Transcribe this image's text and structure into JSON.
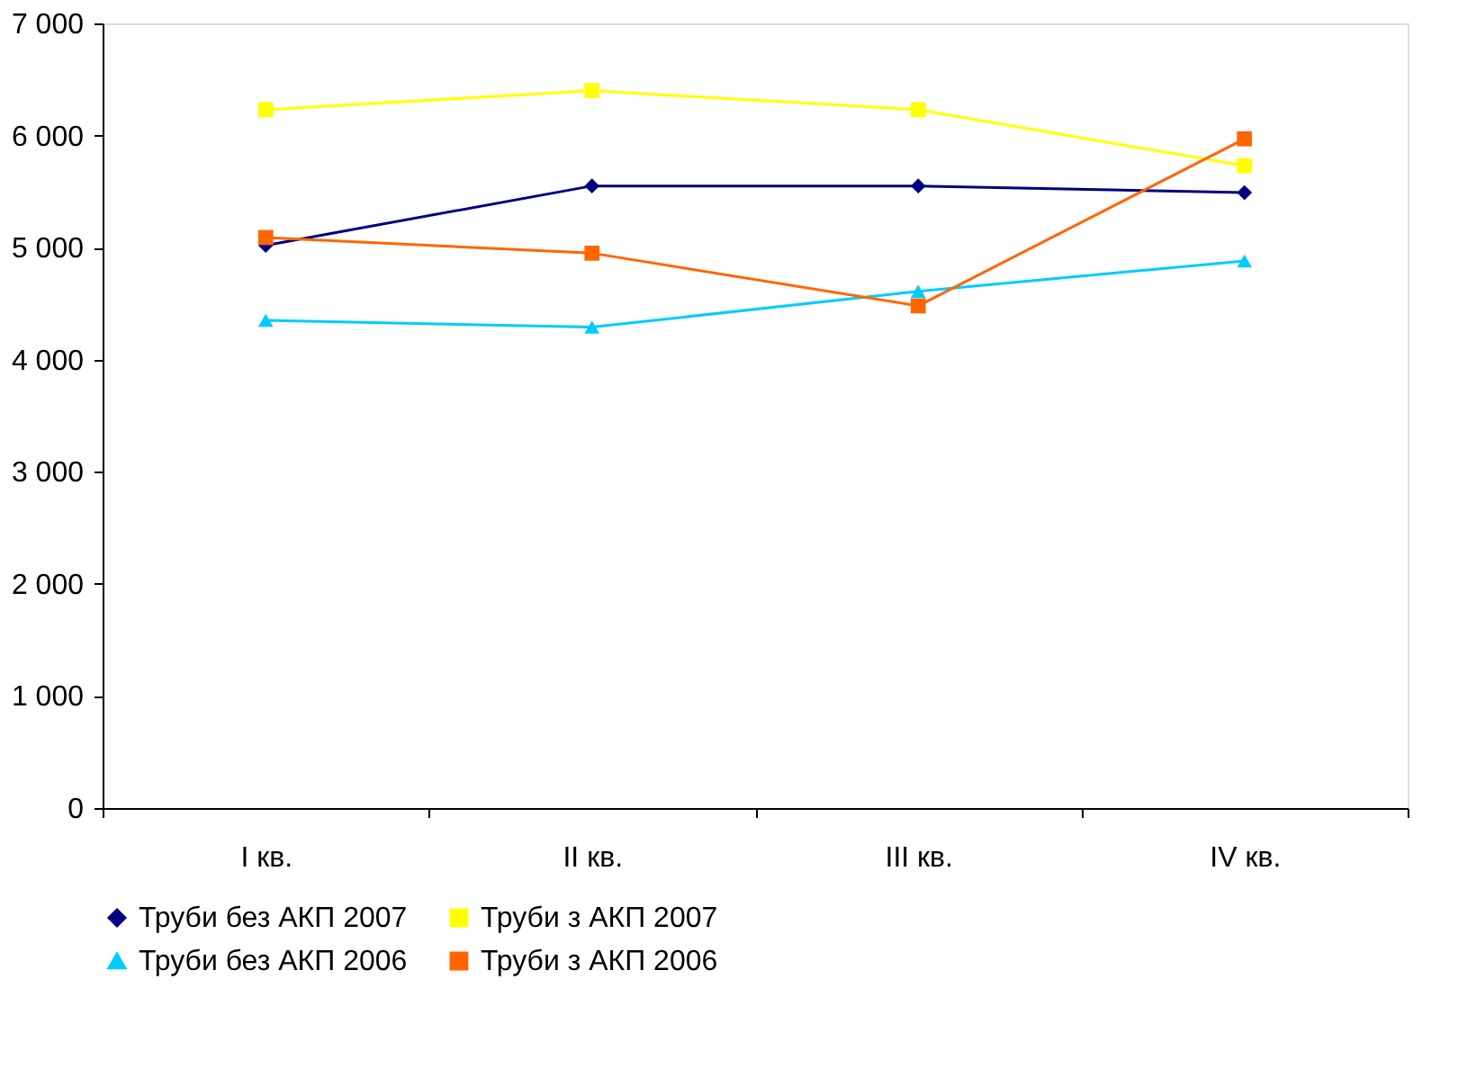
{
  "chart_data": {
    "type": "line",
    "categories": [
      "I кв.",
      "II кв.",
      "III кв.",
      "IV кв."
    ],
    "series": [
      {
        "name": "Труби без АКП 2007",
        "color": "#000080",
        "marker": "diamond",
        "values": [
          5020,
          5550,
          5550,
          5490
        ]
      },
      {
        "name": "Труби з АКП 2007",
        "color": "#ffff00",
        "marker": "square",
        "values": [
          6230,
          6400,
          6230,
          5730
        ]
      },
      {
        "name": "Труби без АКП 2006",
        "color": "#00ccff",
        "marker": "triangle",
        "values": [
          4350,
          4290,
          4610,
          4880
        ]
      },
      {
        "name": "Труби з АКП 2006",
        "color": "#ff6600",
        "marker": "square",
        "values": [
          5090,
          4950,
          4480,
          5970
        ]
      }
    ],
    "ylim": [
      0,
      7000
    ],
    "yticks": [
      0,
      {
        "value": 1000,
        "label": "1 000"
      },
      {
        "value": 2000,
        "label": "2 000"
      },
      {
        "value": 3000,
        "label": "3 000"
      },
      {
        "value": 4000,
        "label": "4 000"
      },
      {
        "value": 5000,
        "label": "5 000"
      },
      {
        "value": 6000,
        "label": "6 000"
      },
      {
        "value": 7000,
        "label": "7 000"
      }
    ],
    "grid": false,
    "legend": "bottom",
    "line_style": "solid"
  }
}
